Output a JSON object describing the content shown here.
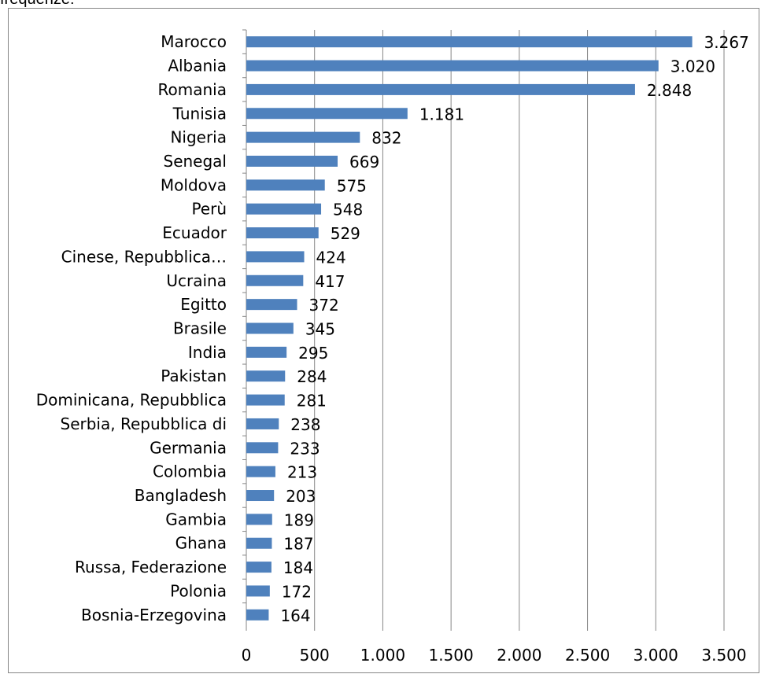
{
  "caption_fragment": "frequenze:",
  "chart_data": {
    "type": "bar",
    "orientation": "horizontal",
    "categories": [
      "Marocco",
      "Albania",
      "Romania",
      "Tunisia",
      "Nigeria",
      "Senegal",
      "Moldova",
      "Perù",
      "Ecuador",
      "Cinese, Repubblica…",
      "Ucraina",
      "Egitto",
      "Brasile",
      "India",
      "Pakistan",
      "Dominicana, Repubblica",
      "Serbia, Repubblica di",
      "Germania",
      "Colombia",
      "Bangladesh",
      "Gambia",
      "Ghana",
      "Russa, Federazione",
      "Polonia",
      "Bosnia-Erzegovina"
    ],
    "values": [
      3267,
      3020,
      2848,
      1181,
      832,
      669,
      575,
      548,
      529,
      424,
      417,
      372,
      345,
      295,
      284,
      281,
      238,
      233,
      213,
      203,
      189,
      187,
      184,
      172,
      164
    ],
    "value_labels": [
      "3.267",
      "3.020",
      "2.848",
      "1.181",
      "832",
      "669",
      "575",
      "548",
      "529",
      "424",
      "417",
      "372",
      "345",
      "295",
      "284",
      "281",
      "238",
      "233",
      "213",
      "203",
      "189",
      "187",
      "184",
      "172",
      "164"
    ],
    "xlim": [
      0,
      3500
    ],
    "x_ticks": [
      0,
      500,
      1000,
      1500,
      2000,
      2500,
      3000,
      3500
    ],
    "x_tick_labels": [
      "0",
      "500",
      "1.000",
      "1.500",
      "2.000",
      "2.500",
      "3.000",
      "3.500"
    ],
    "grid": "vertical",
    "legend": "none",
    "bar_color": "#4f81bd",
    "grid_color": "#868686"
  }
}
